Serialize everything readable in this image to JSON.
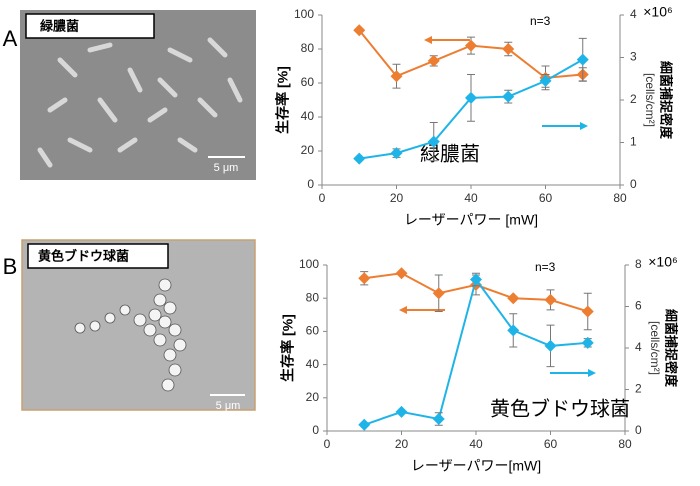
{
  "panels": [
    {
      "label": "A",
      "image_label": "緑膿菌",
      "scale_bar": "5 μm"
    },
    {
      "label": "B",
      "image_label": "黄色ブドウ球菌",
      "scale_bar": "5 μm"
    }
  ],
  "chart_data": [
    {
      "type": "line",
      "x_label": "レーザーパワー [mW]",
      "y_label": "生存率 [%]",
      "y2_label": [
        "細菌捕捉密度",
        "[cells/cm²]"
      ],
      "y2_multiplier": "×10⁶",
      "annotations": [
        "n=3",
        "緑膿菌"
      ],
      "x": [
        10,
        20,
        30,
        40,
        50,
        60,
        70
      ],
      "xlim": [
        0,
        80
      ],
      "xticks": [
        0,
        20,
        40,
        60,
        80
      ],
      "ylim": [
        0,
        100
      ],
      "yticks": [
        0,
        20,
        40,
        60,
        80,
        100
      ],
      "y2lim": [
        0,
        4
      ],
      "y2ticks": [
        0,
        1,
        2,
        3,
        4
      ],
      "series": [
        {
          "color": "#ed7d31",
          "values": [
            91,
            64,
            73,
            82,
            80,
            63,
            65
          ],
          "errors": [
            null,
            7,
            3,
            5,
            4,
            7,
            4
          ]
        },
        {
          "color": "#1fb4e8",
          "axis": "y2",
          "values": [
            0.62,
            0.75,
            1.02,
            2.05,
            2.08,
            2.45,
            2.95
          ],
          "errors": [
            null,
            0.1,
            0.45,
            0.55,
            0.15,
            0.15,
            0.5
          ]
        }
      ]
    },
    {
      "type": "line",
      "x_label": "レーザーパワー[mW]",
      "y_label": "生存率 [%]",
      "y2_label": [
        "細菌捕捉密度",
        "[cells/cm²]"
      ],
      "y2_multiplier": "×10⁶",
      "annotations": [
        "n=3",
        "黄色ブドウ球菌"
      ],
      "x": [
        10,
        20,
        30,
        40,
        50,
        60,
        70
      ],
      "xlim": [
        0,
        80
      ],
      "xticks": [
        0,
        20,
        40,
        60,
        80
      ],
      "ylim": [
        0,
        100
      ],
      "yticks": [
        0,
        20,
        40,
        60,
        80,
        100
      ],
      "y2lim": [
        0,
        8
      ],
      "y2ticks": [
        0,
        2,
        4,
        6,
        8
      ],
      "series": [
        {
          "color": "#ed7d31",
          "values": [
            92,
            95,
            83,
            88,
            80,
            79,
            72
          ],
          "errors": [
            4,
            null,
            11,
            6,
            null,
            6,
            11
          ]
        },
        {
          "color": "#1fb4e8",
          "axis": "y2",
          "values": [
            0.3,
            0.92,
            0.58,
            7.3,
            4.85,
            4.1,
            4.25
          ],
          "errors": [
            null,
            null,
            0.3,
            0.3,
            0.8,
            1.0,
            0.2
          ]
        }
      ]
    }
  ]
}
